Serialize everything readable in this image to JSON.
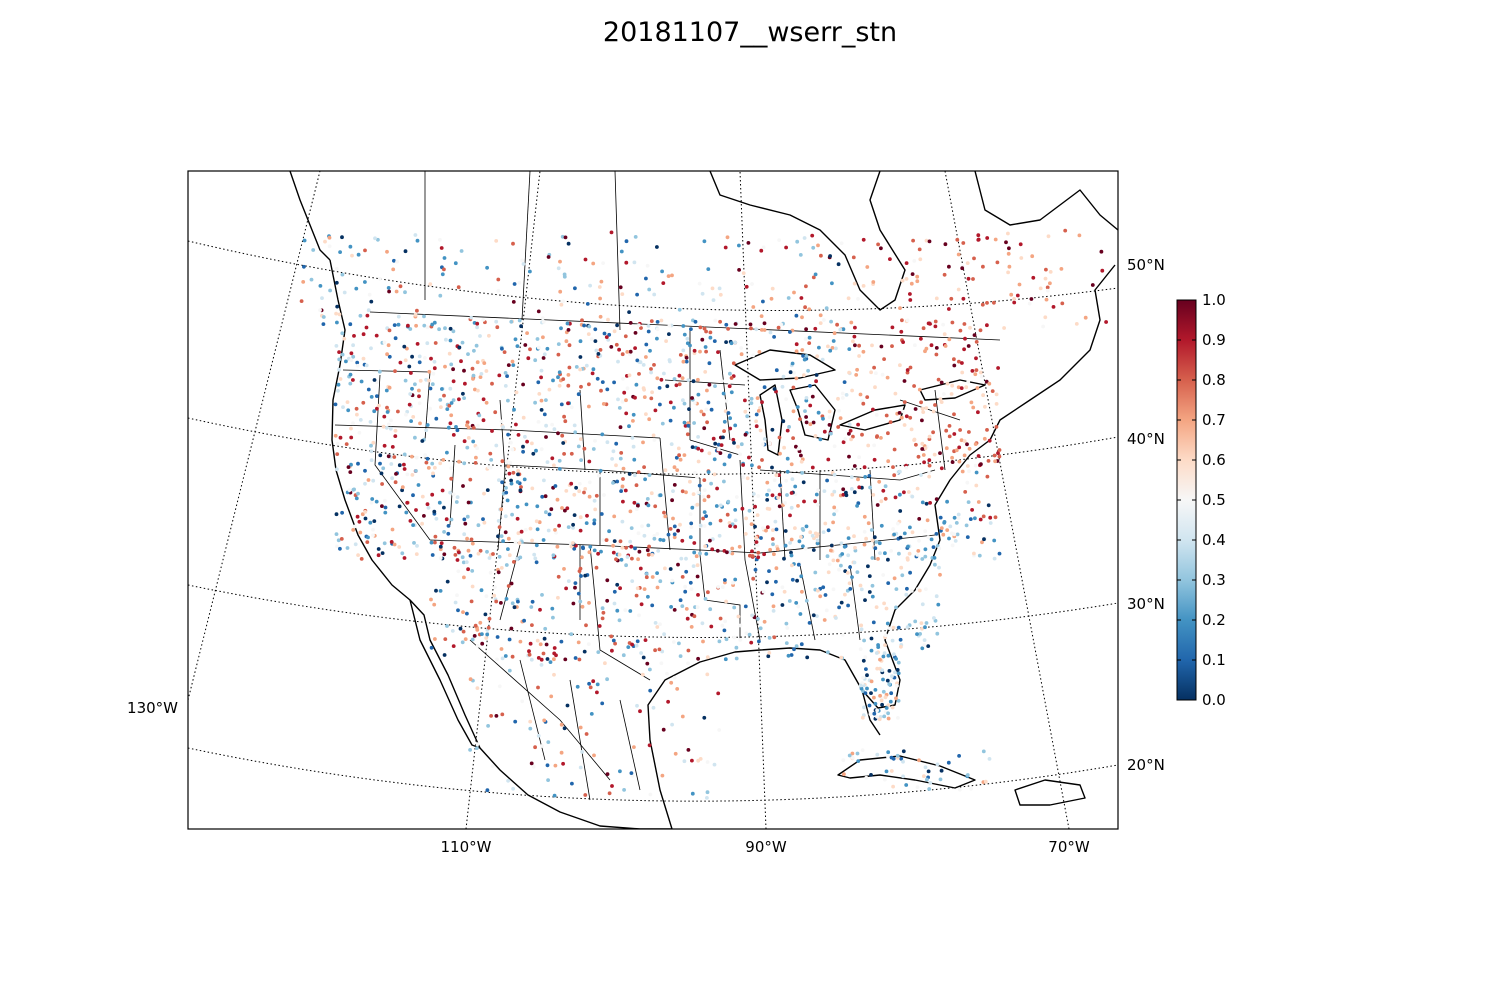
{
  "title": "20181107__wserr_stn",
  "map": {
    "projection": "lambert-conformal",
    "lat_labels": [
      "50°N",
      "40°N",
      "30°N",
      "20°N"
    ],
    "lon_labels": [
      "130°W",
      "110°W",
      "90°W",
      "70°W"
    ],
    "graticule_style": "dotted",
    "boundaries": [
      "coastlines",
      "countries",
      "states"
    ],
    "marker_coverage": "surface stations across the contiguous United States, southern Canada, northern Mexico and the Caribbean"
  },
  "colorbar": {
    "colormap": "RdBu_r",
    "min": 0.0,
    "max": 1.0,
    "tick_labels": [
      "0.0",
      "0.1",
      "0.2",
      "0.3",
      "0.4",
      "0.5",
      "0.6",
      "0.7",
      "0.8",
      "0.9",
      "1.0"
    ],
    "colors": [
      "#053061",
      "#2166ac",
      "#4393c3",
      "#92c5de",
      "#d1e5f0",
      "#f7f7f7",
      "#fddbc7",
      "#f4a582",
      "#d6604d",
      "#b2182b",
      "#67001f"
    ]
  },
  "chart_data": {
    "type": "scatter",
    "title": "20181107__wserr_stn",
    "value_range": [
      0.0,
      1.0
    ],
    "colorbar_ticks": [
      0.0,
      0.1,
      0.2,
      0.3,
      0.4,
      0.5,
      0.6,
      0.7,
      0.8,
      0.9,
      1.0
    ],
    "grid": true,
    "legend": "right (colorbar)"
  }
}
